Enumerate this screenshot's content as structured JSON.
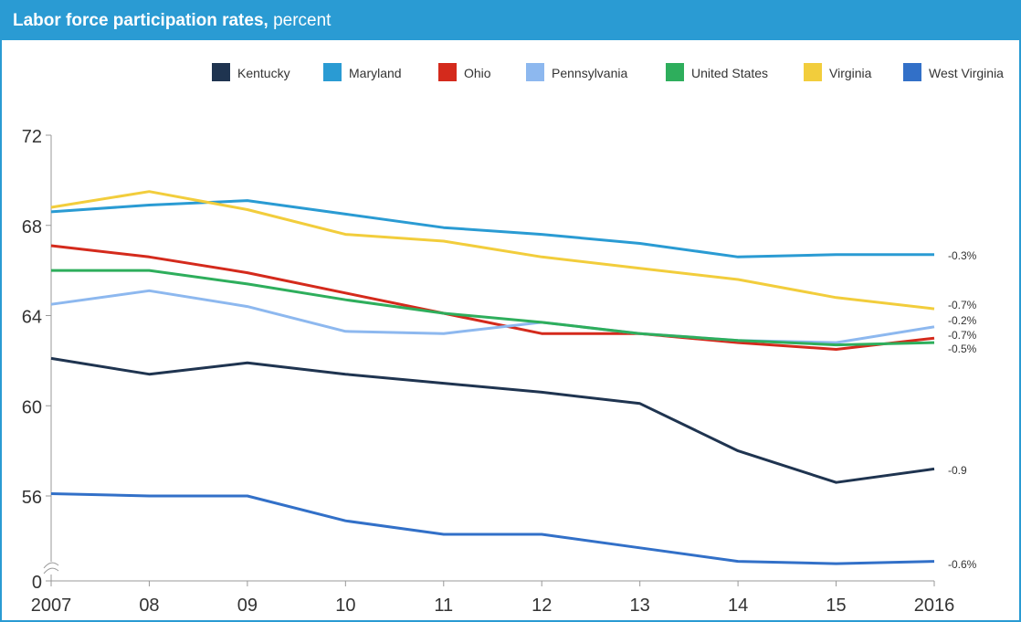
{
  "header": {
    "title_bold": "Labor force participation rates,",
    "title_light": " percent"
  },
  "colors": {
    "header_bg": "#2a9bd3",
    "axis": "#333333"
  },
  "chart_data": {
    "type": "line",
    "title": "Labor force participation rates, percent",
    "x": [
      "2007",
      "08",
      "09",
      "10",
      "11",
      "12",
      "13",
      "14",
      "15",
      "2016"
    ],
    "y_ticks": [
      "72",
      "68",
      "64",
      "60",
      "56",
      "0"
    ],
    "ylim": [
      52.5,
      72
    ],
    "y_axis_break": true,
    "grid": false,
    "legend_position": "top-right",
    "series": [
      {
        "name": "Kentucky",
        "color": "#1f3450",
        "values": [
          62.1,
          61.4,
          61.9,
          61.4,
          61.0,
          60.6,
          60.1,
          58.0,
          56.6,
          57.2
        ],
        "end_label": "-0.9"
      },
      {
        "name": "Maryland",
        "color": "#2a9bd3",
        "values": [
          68.6,
          68.9,
          69.1,
          68.5,
          67.9,
          67.6,
          67.2,
          66.6,
          66.7,
          66.7
        ],
        "end_label": "-0.3%"
      },
      {
        "name": "Ohio",
        "color": "#d42a1c",
        "values": [
          67.1,
          66.6,
          65.9,
          65.0,
          64.1,
          63.2,
          63.2,
          62.8,
          62.5,
          63.0
        ],
        "end_label": "-0.7%"
      },
      {
        "name": "Pennsylvania",
        "color": "#8db8ef",
        "values": [
          64.5,
          65.1,
          64.4,
          63.3,
          63.2,
          63.7,
          63.2,
          62.9,
          62.8,
          63.5
        ],
        "end_label": "-0.2%"
      },
      {
        "name": "United States",
        "color": "#2eae5c",
        "values": [
          66.0,
          66.0,
          65.4,
          64.7,
          64.1,
          63.7,
          63.2,
          62.9,
          62.7,
          62.8
        ],
        "end_label": "-0.5%"
      },
      {
        "name": "Virginia",
        "color": "#f2cd3c",
        "values": [
          68.8,
          69.5,
          68.7,
          67.6,
          67.3,
          66.6,
          66.1,
          65.6,
          64.8,
          64.3
        ],
        "end_label": "-0.7%"
      },
      {
        "name": "West Virginia",
        "color": "#3270c8",
        "values": [
          56.1,
          56.0,
          56.0,
          54.9,
          54.3,
          54.3,
          53.7,
          53.1,
          53.0,
          53.1
        ],
        "end_label": "-0.6%"
      }
    ]
  }
}
